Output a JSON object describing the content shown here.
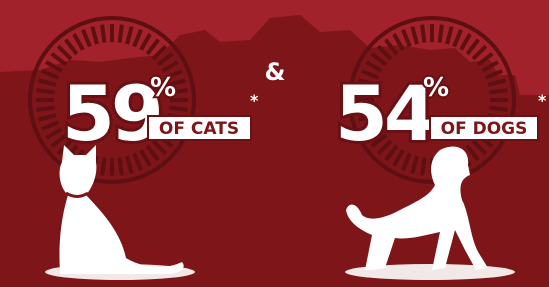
{
  "stats": [
    {
      "number": "59",
      "unit": "%",
      "label": "OF CATS",
      "footnote": "*"
    },
    {
      "number": "54",
      "unit": "%",
      "label": "OF DOGS",
      "footnote": "*"
    }
  ],
  "connector": "&"
}
